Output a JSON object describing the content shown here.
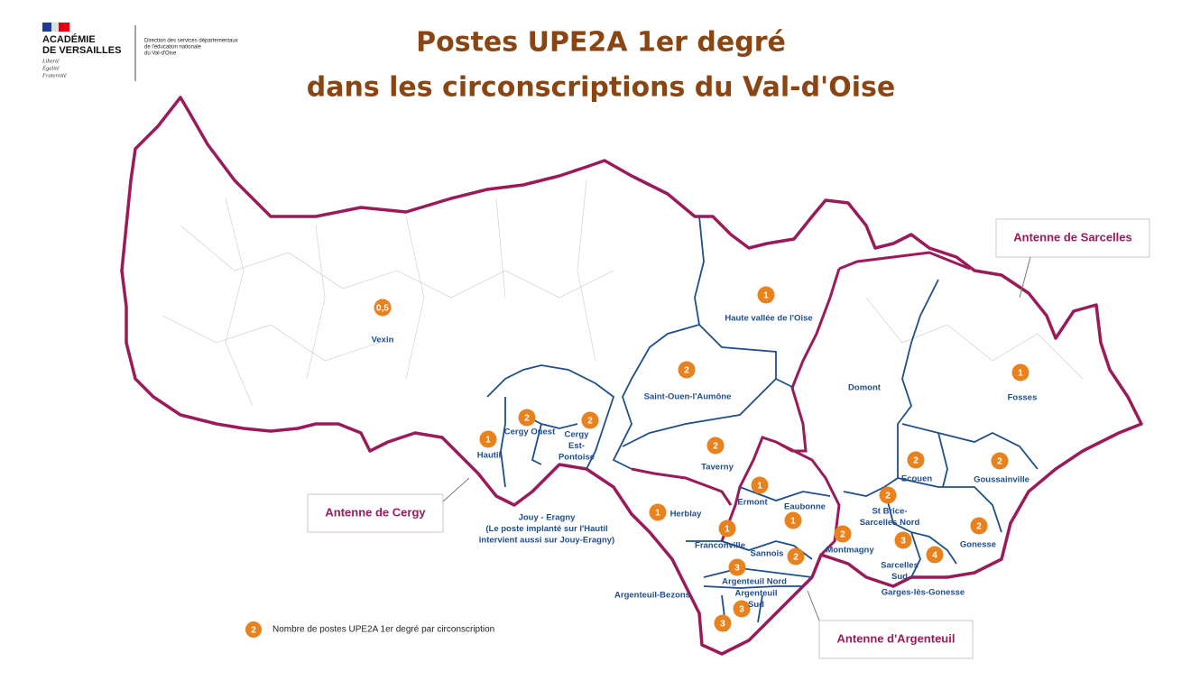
{
  "header": {
    "logo_lines": [
      "ACADÉMIE",
      "DE VERSAILLES"
    ],
    "motto": [
      "Liberté",
      "Égalité",
      "Fraternité"
    ],
    "direction": [
      "Direction des services départementaux",
      "de l'éducation nationale",
      "du Val-d'Oise"
    ]
  },
  "title": [
    "Postes UPE2A 1er degré",
    "dans les circonscriptions du Val-d'Oise"
  ],
  "circonscriptions": [
    {
      "lines": [
        "Vexin"
      ],
      "postes": "0,5"
    },
    {
      "lines": [
        "Haute vallée de l'Oise"
      ],
      "postes": "1"
    },
    {
      "lines": [
        "Saint-Ouen-l'Aumône"
      ],
      "postes": "2"
    },
    {
      "lines": [
        "Cergy Ouest"
      ],
      "postes": "2"
    },
    {
      "lines": [
        "Cergy",
        "Est-",
        "Pontoise"
      ],
      "postes": "2"
    },
    {
      "lines": [
        "Hautil"
      ],
      "postes": "1"
    },
    {
      "lines": [
        "Taverny"
      ],
      "postes": "2"
    },
    {
      "lines": [
        "Domont"
      ]
    },
    {
      "lines": [
        "Fosses"
      ],
      "postes": "1"
    },
    {
      "lines": [
        "Ecouen"
      ],
      "postes": "2"
    },
    {
      "lines": [
        "Goussainville"
      ],
      "postes": "2"
    },
    {
      "lines": [
        "Ermont"
      ],
      "postes": "1"
    },
    {
      "lines": [
        "Eaubonne"
      ],
      "postes": "1"
    },
    {
      "lines": [
        "Herblay"
      ],
      "postes": "1"
    },
    {
      "lines": [
        "Franconville"
      ],
      "postes": "1"
    },
    {
      "lines": [
        "St Brice-",
        "Sarcelles Nord"
      ],
      "postes": "2"
    },
    {
      "lines": [
        "Montmagny"
      ],
      "postes": "2"
    },
    {
      "lines": [
        "Gonesse"
      ],
      "postes": "2"
    },
    {
      "lines": [
        "Sannois"
      ],
      "postes": "2"
    },
    {
      "lines": [
        "Argenteuil Nord"
      ],
      "postes": "3"
    },
    {
      "lines": [
        "Sarcelles",
        "Sud"
      ],
      "postes": "3"
    },
    {
      "lines": [
        "Garges-lès-Gonesse"
      ],
      "postes": "4"
    },
    {
      "lines": [
        "Argenteuil",
        "Sud"
      ],
      "postes": "3"
    },
    {
      "lines": [
        "Argenteuil-Bezons"
      ],
      "postes": "3"
    },
    {
      "lines": [
        "Jouy - Eragny",
        "(Le poste implanté sur l'Hautil",
        "intervient aussi sur Jouy-Eragny)"
      ]
    }
  ],
  "antennes": [
    "Antenne de Sarcelles",
    "Antenne de Cergy",
    "Antenne d'Argenteuil"
  ],
  "legend": {
    "badge": "2",
    "text": "Nombre de postes UPE2A 1er degré par circonscription"
  }
}
